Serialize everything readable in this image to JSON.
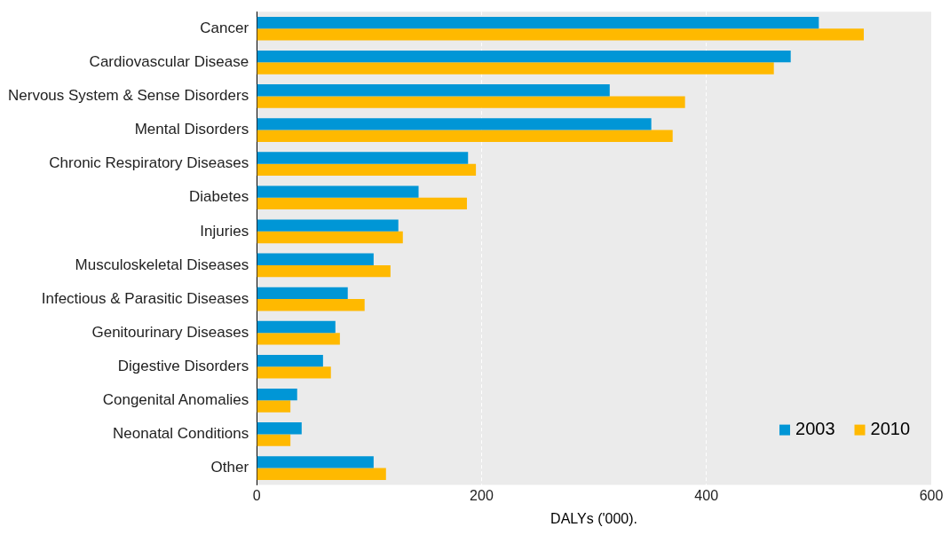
{
  "chart_data": {
    "type": "bar",
    "orientation": "horizontal",
    "xlabel": "DALYs ('000).",
    "categories": [
      "Cancer",
      "Cardiovascular Disease",
      "Nervous System & Sense Disorders",
      "Mental Disorders",
      "Chronic Respiratory Diseases",
      "Diabetes",
      "Injuries",
      "Musculoskeletal Diseases",
      "Infectious & Parasitic Diseases",
      "Genitourinary Diseases",
      "Digestive Disorders",
      "Congenital Anomalies",
      "Neonatal Conditions",
      "Other"
    ],
    "series": [
      {
        "name": "2003",
        "color": "#0096d6",
        "values": [
          500,
          475,
          314,
          351,
          188,
          144,
          126,
          104,
          81,
          70,
          59,
          36,
          40,
          104
        ]
      },
      {
        "name": "2010",
        "color": "#ffb900",
        "values": [
          540,
          460,
          381,
          370,
          195,
          187,
          130,
          119,
          96,
          74,
          66,
          30,
          30,
          115
        ]
      }
    ],
    "xlim": [
      0,
      600
    ],
    "xticks": [
      0,
      200,
      400,
      600
    ],
    "grid": "x",
    "legend": "bottom right"
  }
}
